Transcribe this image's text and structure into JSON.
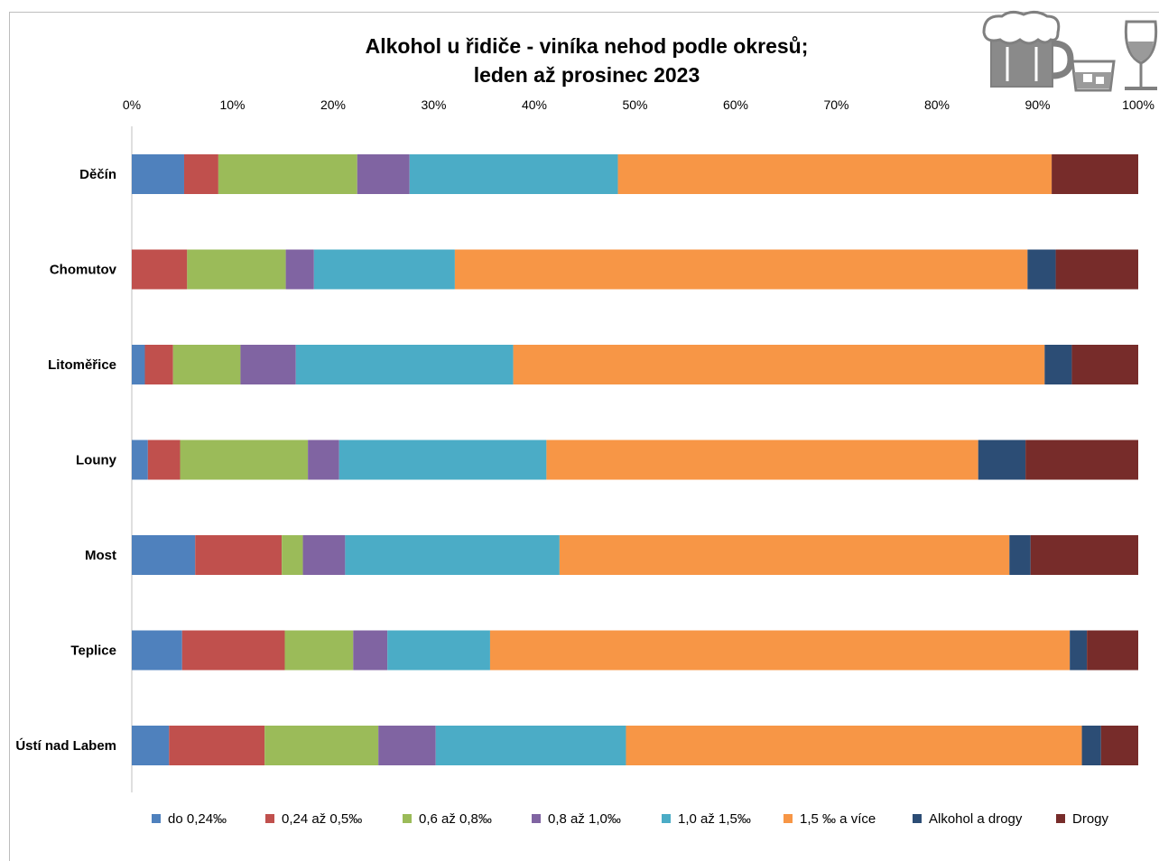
{
  "chart_data": {
    "type": "bar",
    "orientation": "horizontal",
    "stacked": "percent",
    "title": "Alkohol u řidiče - viníka nehod podle okresů;",
    "subtitle": "leden až prosinec 2023",
    "xlim": [
      0,
      100
    ],
    "x_ticks": [
      "0%",
      "10%",
      "20%",
      "30%",
      "40%",
      "50%",
      "60%",
      "70%",
      "80%",
      "90%",
      "100%"
    ],
    "x_axis_position": "top",
    "grid": false,
    "legend_position": "bottom",
    "categories": [
      "Děčín",
      "Chomutov",
      "Litoměřice",
      "Louny",
      "Most",
      "Teplice",
      "Ústí nad Labem"
    ],
    "series": [
      {
        "name": "do 0,24‰",
        "color": "#4f81bd",
        "values": [
          5.2,
          0.0,
          1.3,
          1.6,
          6.3,
          5.0,
          3.7
        ]
      },
      {
        "name": "0,24 až 0,5‰",
        "color": "#c0504d",
        "values": [
          3.4,
          5.5,
          2.8,
          3.2,
          8.6,
          10.2,
          9.5
        ]
      },
      {
        "name": "0,6 až 0,8‰",
        "color": "#9bbb59",
        "values": [
          13.8,
          9.8,
          6.7,
          12.7,
          2.1,
          6.8,
          11.3
        ]
      },
      {
        "name": "0,8 až 1,0‰",
        "color": "#8064a2",
        "values": [
          5.2,
          2.8,
          5.5,
          3.1,
          4.2,
          3.4,
          5.7
        ]
      },
      {
        "name": "1,0 až 1,5‰",
        "color": "#4bacc6",
        "values": [
          20.7,
          14.0,
          21.6,
          20.6,
          21.3,
          10.2,
          18.9
        ]
      },
      {
        "name": "1,5 ‰ a více",
        "color": "#f79646",
        "values": [
          43.1,
          56.9,
          52.8,
          42.9,
          44.7,
          57.6,
          45.3
        ]
      },
      {
        "name": "Alkohol a drogy",
        "color": "#2c4d75",
        "values": [
          0.0,
          2.8,
          2.7,
          4.7,
          2.1,
          1.7,
          1.9
        ]
      },
      {
        "name": "Drogy",
        "color": "#772c2a",
        "values": [
          8.6,
          8.2,
          6.6,
          11.2,
          10.7,
          5.1,
          3.7
        ]
      }
    ]
  },
  "decoration": {
    "icons": [
      "beer-mug-icon",
      "whisky-glass-icon",
      "wine-glass-icon"
    ],
    "icon_color": "#808080"
  }
}
